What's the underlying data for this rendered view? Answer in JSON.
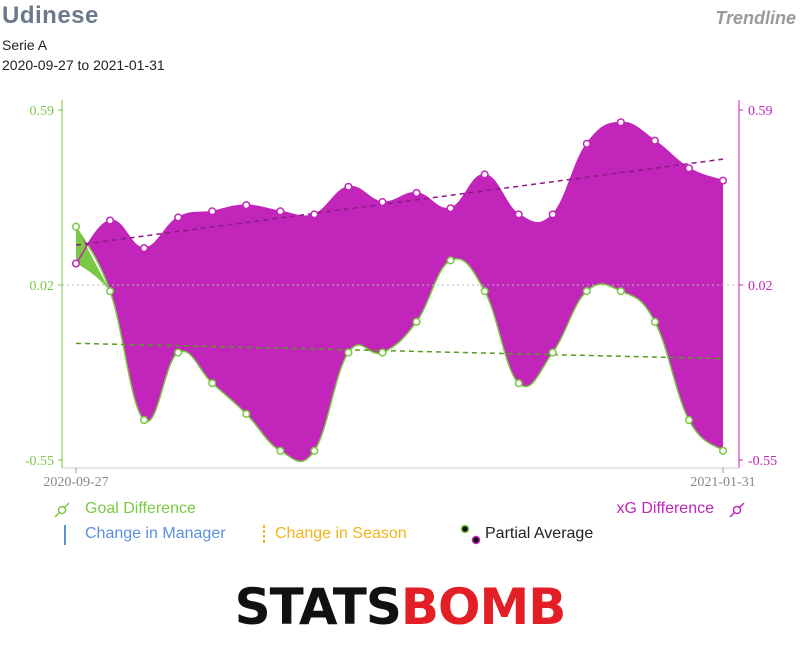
{
  "header": {
    "team": "Udinese",
    "chart_kind": "Trendline",
    "competition": "Serie A",
    "date_range": "2020-09-27 to 2021-01-31"
  },
  "legend": {
    "goal_difference": "Goal Difference",
    "xg_difference": "xG Difference",
    "change_manager": "Change in Manager",
    "change_season": "Change in Season",
    "partial_average": "Partial Average"
  },
  "logo": {
    "part1": "STATS",
    "part2": "BOMB"
  },
  "colors": {
    "goal": "#7ac943",
    "goal_dark": "#5a9a20",
    "xg": "#c125b9",
    "xg_dark": "#8b1a86",
    "manager": "#5b8fe0",
    "season": "#f2b418"
  },
  "chart_data": {
    "type": "area",
    "x_start_label": "2020-09-27",
    "x_end_label": "2021-01-31",
    "left_ticks": [
      "0.59",
      "0.02",
      "-0.55"
    ],
    "right_ticks": [
      "0.59",
      "0.02",
      "-0.55"
    ],
    "ylim": [
      -0.55,
      0.59
    ],
    "series": [
      {
        "name": "Goal Difference",
        "values": [
          0.21,
          0.0,
          -0.42,
          -0.2,
          -0.3,
          -0.4,
          -0.52,
          -0.52,
          -0.2,
          -0.2,
          -0.1,
          0.1,
          0.0,
          -0.3,
          -0.2,
          0.0,
          0.0,
          -0.1,
          -0.42,
          -0.52
        ],
        "trend": [
          -0.17,
          -0.22
        ]
      },
      {
        "name": "xG Difference",
        "values": [
          0.09,
          0.23,
          0.14,
          0.24,
          0.26,
          0.28,
          0.26,
          0.25,
          0.34,
          0.29,
          0.32,
          0.27,
          0.38,
          0.25,
          0.25,
          0.48,
          0.55,
          0.49,
          0.4,
          0.36
        ],
        "trend": [
          0.15,
          0.43
        ]
      }
    ]
  }
}
